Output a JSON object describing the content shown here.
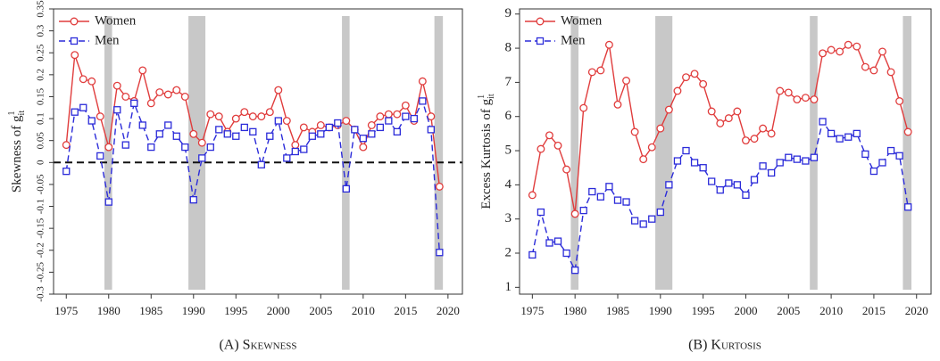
{
  "chart_data": [
    {
      "type": "line",
      "caption": "(A) Skewness",
      "ylabel": {
        "text": "Skewness of g",
        "sup": "1",
        "sub": "it"
      },
      "x": [
        1975,
        1976,
        1977,
        1978,
        1979,
        1980,
        1981,
        1982,
        1983,
        1984,
        1985,
        1986,
        1987,
        1988,
        1989,
        1990,
        1991,
        1992,
        1993,
        1994,
        1995,
        1996,
        1997,
        1998,
        1999,
        2000,
        2001,
        2002,
        2003,
        2004,
        2005,
        2006,
        2007,
        2008,
        2009,
        2010,
        2011,
        2012,
        2013,
        2014,
        2015,
        2016,
        2017,
        2018,
        2019
      ],
      "series": [
        {
          "name": "Women",
          "color": "#e03c3c",
          "marker": "circle",
          "dashed": false,
          "values": [
            0.04,
            0.245,
            0.19,
            0.185,
            0.105,
            0.035,
            0.175,
            0.15,
            0.14,
            0.21,
            0.135,
            0.16,
            0.155,
            0.165,
            0.15,
            0.065,
            0.045,
            0.11,
            0.105,
            0.07,
            0.1,
            0.115,
            0.105,
            0.105,
            0.115,
            0.165,
            0.095,
            0.04,
            0.08,
            0.07,
            0.085,
            0.08,
            0.085,
            0.095,
            0.075,
            0.035,
            0.085,
            0.105,
            0.11,
            0.11,
            0.13,
            0.095,
            0.185,
            0.105,
            -0.055
          ]
        },
        {
          "name": "Men",
          "color": "#2b2bd9",
          "marker": "square",
          "dashed": true,
          "values": [
            -0.02,
            0.115,
            0.125,
            0.095,
            0.015,
            -0.09,
            0.12,
            0.04,
            0.135,
            0.085,
            0.035,
            0.065,
            0.085,
            0.06,
            0.035,
            -0.085,
            0.01,
            0.035,
            0.075,
            0.065,
            0.06,
            0.08,
            0.07,
            -0.005,
            0.06,
            0.095,
            0.01,
            0.025,
            0.03,
            0.06,
            0.065,
            0.08,
            0.09,
            -0.06,
            0.075,
            0.055,
            0.065,
            0.08,
            0.095,
            0.07,
            0.105,
            0.1,
            0.14,
            0.075,
            -0.205
          ]
        }
      ],
      "shaded": [
        [
          1979.5,
          1980.4
        ],
        [
          1989.4,
          1991.4
        ],
        [
          2007.5,
          2008.4
        ],
        [
          2018.4,
          2019.4
        ]
      ],
      "hline": 0,
      "xlim": [
        1973.5,
        2021.7
      ],
      "xticks": [
        1975,
        1980,
        1985,
        1990,
        1995,
        2000,
        2005,
        2010,
        2015,
        2020
      ],
      "ylim": [
        -0.3,
        0.35
      ],
      "yticks": [
        -0.3,
        -0.25,
        -0.2,
        -0.15,
        -0.1,
        -0.05,
        0,
        0.05,
        0.1,
        0.15,
        0.2,
        0.25,
        0.3,
        0.35
      ],
      "legend": "top-left"
    },
    {
      "type": "line",
      "caption": "(B) Kurtosis",
      "ylabel": {
        "text": "Excess Kurtosis of g",
        "sup": "1",
        "sub": "it"
      },
      "x": [
        1975,
        1976,
        1977,
        1978,
        1979,
        1980,
        1981,
        1982,
        1983,
        1984,
        1985,
        1986,
        1987,
        1988,
        1989,
        1990,
        1991,
        1992,
        1993,
        1994,
        1995,
        1996,
        1997,
        1998,
        1999,
        2000,
        2001,
        2002,
        2003,
        2004,
        2005,
        2006,
        2007,
        2008,
        2009,
        2010,
        2011,
        2012,
        2013,
        2014,
        2015,
        2016,
        2017,
        2018,
        2019
      ],
      "series": [
        {
          "name": "Women",
          "color": "#e03c3c",
          "marker": "circle",
          "dashed": false,
          "values": [
            3.7,
            5.05,
            5.45,
            5.15,
            4.45,
            3.15,
            6.25,
            7.3,
            7.35,
            8.1,
            6.35,
            7.05,
            5.55,
            4.75,
            5.1,
            5.65,
            6.2,
            6.75,
            7.15,
            7.25,
            6.95,
            6.15,
            5.8,
            5.95,
            6.15,
            5.3,
            5.35,
            5.65,
            5.5,
            6.75,
            6.7,
            6.5,
            6.55,
            6.5,
            7.85,
            7.95,
            7.9,
            8.1,
            8.05,
            7.45,
            7.35,
            7.9,
            7.3,
            6.45,
            5.55
          ]
        },
        {
          "name": "Men",
          "color": "#2b2bd9",
          "marker": "square",
          "dashed": true,
          "values": [
            1.95,
            3.2,
            2.3,
            2.35,
            2.0,
            1.5,
            3.25,
            3.8,
            3.65,
            3.95,
            3.55,
            3.5,
            2.95,
            2.85,
            3.0,
            3.2,
            4.0,
            4.7,
            5.0,
            4.65,
            4.5,
            4.1,
            3.85,
            4.05,
            4.0,
            3.7,
            4.15,
            4.55,
            4.35,
            4.65,
            4.8,
            4.75,
            4.7,
            4.8,
            5.85,
            5.5,
            5.35,
            5.4,
            5.5,
            4.9,
            4.4,
            4.65,
            5.0,
            4.85,
            3.35
          ]
        }
      ],
      "shaded": [
        [
          1979.5,
          1980.4
        ],
        [
          1989.4,
          1991.4
        ],
        [
          2007.5,
          2008.4
        ],
        [
          2018.4,
          2019.4
        ]
      ],
      "xlim": [
        1973.5,
        2021.7
      ],
      "xticks": [
        1975,
        1980,
        1985,
        1990,
        1995,
        2000,
        2005,
        2010,
        2015,
        2020
      ],
      "ylim": [
        0.8,
        9.15
      ],
      "yticks": [
        1,
        2,
        3,
        4,
        5,
        6,
        7,
        8,
        9
      ],
      "legend": "top-left"
    }
  ]
}
